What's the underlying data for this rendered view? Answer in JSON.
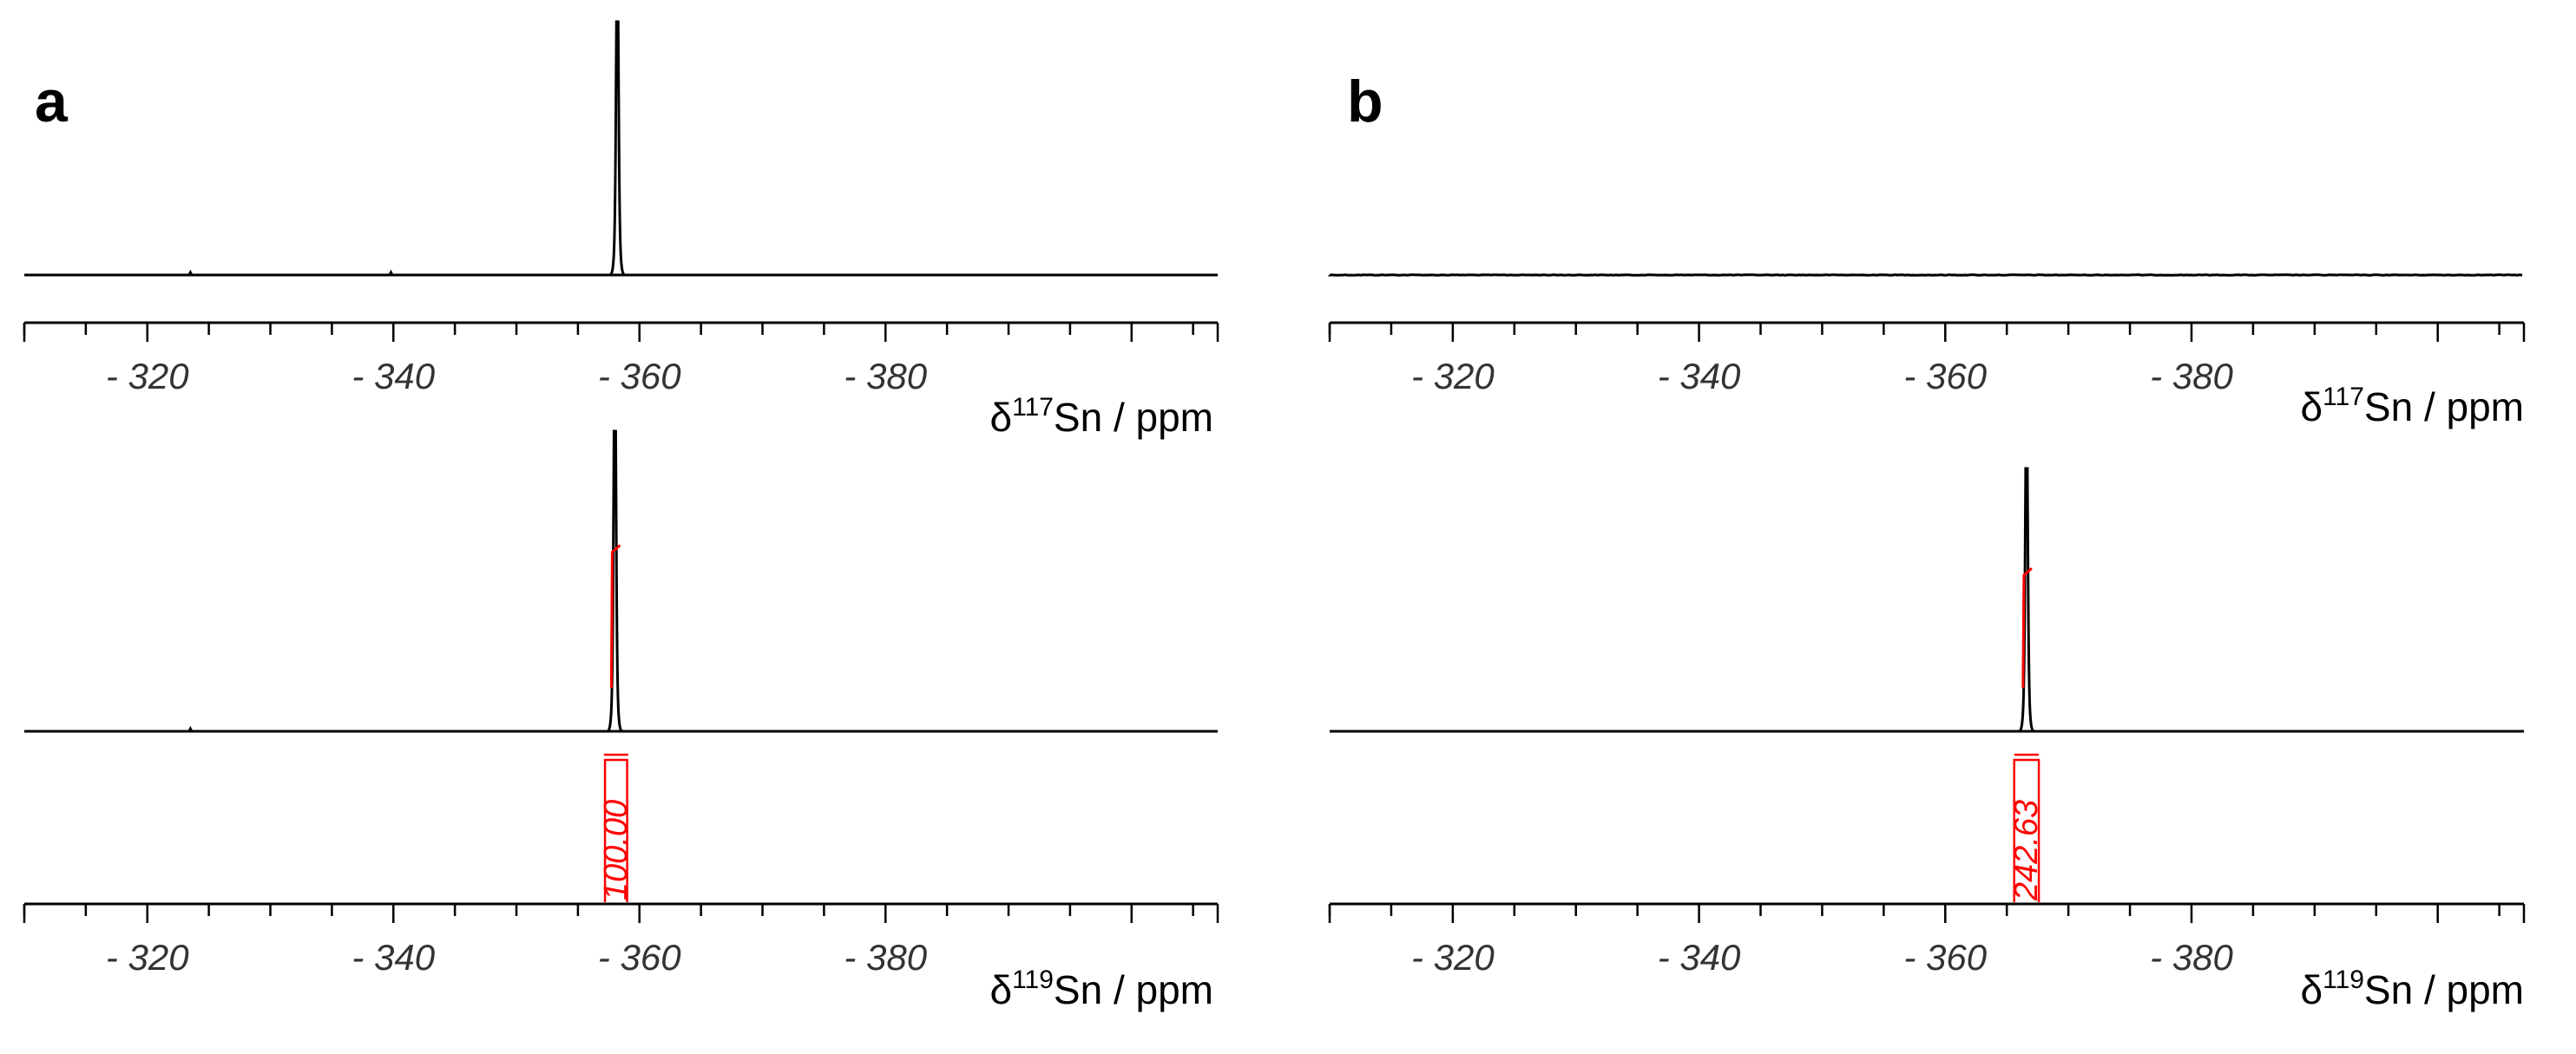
{
  "figure": {
    "panels": [
      {
        "label": "a"
      },
      {
        "label": "b"
      }
    ]
  },
  "chart_data": [
    {
      "panel": "a",
      "type": "line",
      "nucleus": "117",
      "xlabel_symbol": "δ",
      "xlabel_sup": "117",
      "xlabel_rest": "Sn / ppm",
      "xlim": [
        -310,
        -407
      ],
      "reversed_x": true,
      "ticks": [
        -320,
        -340,
        -360,
        -380
      ],
      "tick_labels": [
        "- 320",
        "- 340",
        "- 360",
        "- 380"
      ],
      "minor_tick_step": 5,
      "peaks": [
        {
          "x": -358.2,
          "height": 1.0
        }
      ],
      "minor_peaks": [
        {
          "x": -323.5,
          "height": 0.01
        },
        {
          "x": -339.8,
          "height": 0.01
        }
      ],
      "noise": 0.0,
      "integrals": []
    },
    {
      "panel": "a",
      "type": "line",
      "nucleus": "119",
      "xlabel_symbol": "δ",
      "xlabel_sup": "119",
      "xlabel_rest": "Sn / ppm",
      "xlim": [
        -310,
        -407
      ],
      "reversed_x": true,
      "ticks": [
        -320,
        -340,
        -360,
        -380
      ],
      "tick_labels": [
        "- 320",
        "- 340",
        "- 360",
        "- 380"
      ],
      "minor_tick_step": 5,
      "peaks": [
        {
          "x": -358.0,
          "height": 1.0
        }
      ],
      "minor_peaks": [
        {
          "x": -323.5,
          "height": 0.006
        }
      ],
      "noise": 0.0,
      "integrals": [
        {
          "from": -357.2,
          "to": -359.0,
          "value": "100.00"
        }
      ]
    },
    {
      "panel": "b",
      "type": "line",
      "nucleus": "117",
      "xlabel_symbol": "δ",
      "xlabel_sup": "117",
      "xlabel_rest": "Sn / ppm",
      "xlim": [
        -310,
        -407
      ],
      "reversed_x": true,
      "ticks": [
        -320,
        -340,
        -360,
        -380
      ],
      "tick_labels": [
        "- 320",
        "- 340",
        "- 360",
        "- 380"
      ],
      "minor_tick_step": 5,
      "peaks": [],
      "minor_peaks": [],
      "noise": 0.03,
      "integrals": []
    },
    {
      "panel": "b",
      "type": "line",
      "nucleus": "119",
      "xlabel_symbol": "δ",
      "xlabel_sup": "119",
      "xlabel_rest": "Sn / ppm",
      "xlim": [
        -310,
        -407
      ],
      "reversed_x": true,
      "ticks": [
        -320,
        -340,
        -360,
        -380
      ],
      "tick_labels": [
        "- 320",
        "- 340",
        "- 360",
        "- 380"
      ],
      "minor_tick_step": 5,
      "peaks": [
        {
          "x": -366.6,
          "height": 1.0
        }
      ],
      "minor_peaks": [],
      "noise": 0.0,
      "integrals": [
        {
          "from": -365.6,
          "to": -367.6,
          "value": "242.63"
        }
      ]
    }
  ]
}
